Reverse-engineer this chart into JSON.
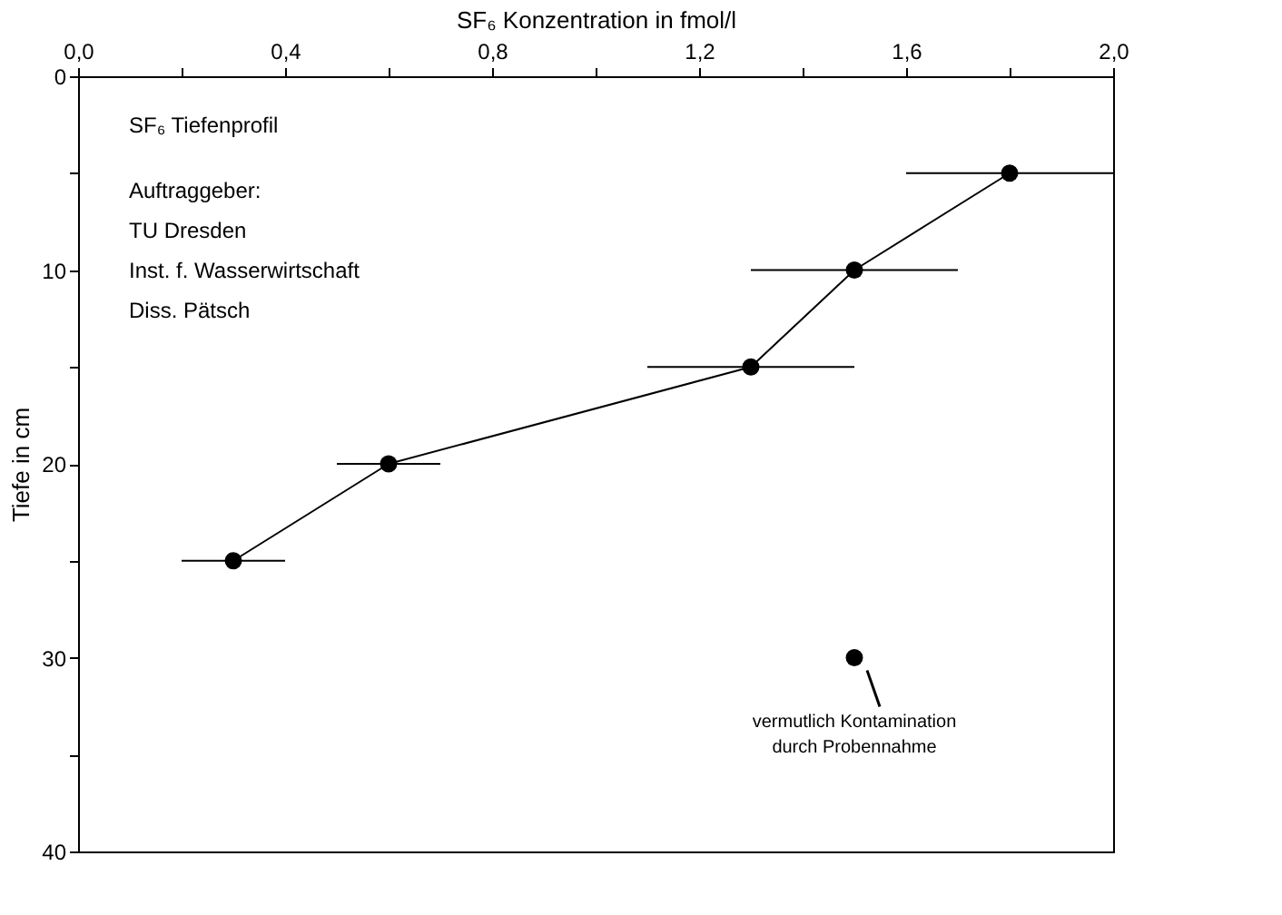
{
  "chart_data": {
    "type": "line",
    "xlabel": "SF₆ Konzentration in fmol/l",
    "ylabel": "Tiefe in cm",
    "xlim": [
      0,
      2
    ],
    "ylim": [
      40,
      0
    ],
    "xticks": [
      {
        "value": 0,
        "label": "0,0"
      },
      {
        "value": 0.2,
        "label": null
      },
      {
        "value": 0.4,
        "label": "0,4"
      },
      {
        "value": 0.6,
        "label": null
      },
      {
        "value": 0.8,
        "label": "0,8"
      },
      {
        "value": 1.0,
        "label": null
      },
      {
        "value": 1.2,
        "label": "1,2"
      },
      {
        "value": 1.4,
        "label": null
      },
      {
        "value": 1.6,
        "label": "1,6"
      },
      {
        "value": 1.8,
        "label": null
      },
      {
        "value": 2.0,
        "label": "2,0"
      }
    ],
    "yticks": [
      0,
      {
        "value": 5,
        "label": null
      },
      10,
      {
        "value": 15,
        "label": null
      },
      20,
      {
        "value": 25,
        "label": null
      },
      30,
      {
        "value": 35,
        "label": null
      },
      40
    ],
    "grid": false,
    "marker": "circle",
    "line_style": "solid",
    "series": [
      {
        "color": "#000000",
        "x": [
          1.8,
          1.5,
          1.3,
          0.6,
          0.3
        ],
        "values": [
          5,
          10,
          15,
          20,
          25
        ],
        "xerrors": [
          0.2,
          0.2,
          0.2,
          0.1,
          0.1
        ]
      },
      {
        "type": "scatter",
        "color": "#000000",
        "x": [
          1.5
        ],
        "values": [
          30
        ]
      }
    ],
    "annotations": [
      "SF₆ Tiefenprofil",
      "Auftraggeber:\nTU Dresden\nInst. f. Wasserwirtschaft\nDiss. Pätsch",
      {
        "text": "vermutlich Kontamination\ndurch Probennahme",
        "x": 1.5,
        "y": 30
      }
    ]
  }
}
